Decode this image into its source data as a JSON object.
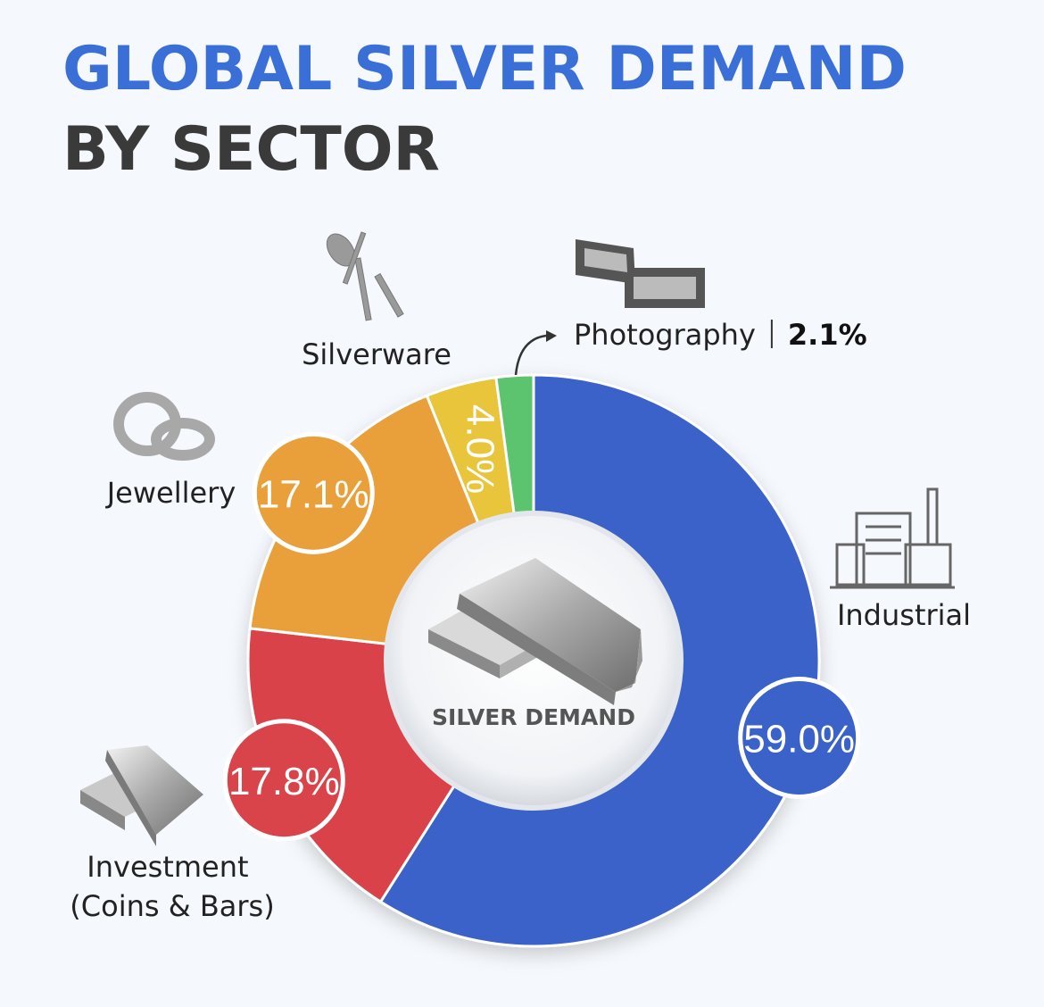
{
  "chart_data": {
    "type": "donut",
    "title": "GLOBAL SILVER DEMAND",
    "subtitle": "BY SECTOR",
    "center_label": "SILVER DEMAND",
    "categories": [
      "Industrial",
      "Investment (Coins & Bars)",
      "Jewellery",
      "Silverware",
      "Photography"
    ],
    "values": [
      59.0,
      17.8,
      17.1,
      4.0,
      2.1
    ],
    "value_labels": [
      "59.0%",
      "17.8%",
      "17.1%",
      "4.0%",
      "2.1%"
    ],
    "colors": [
      "#3a62c9",
      "#d9434a",
      "#e9a03a",
      "#e8c53a",
      "#5cc46e"
    ]
  }
}
